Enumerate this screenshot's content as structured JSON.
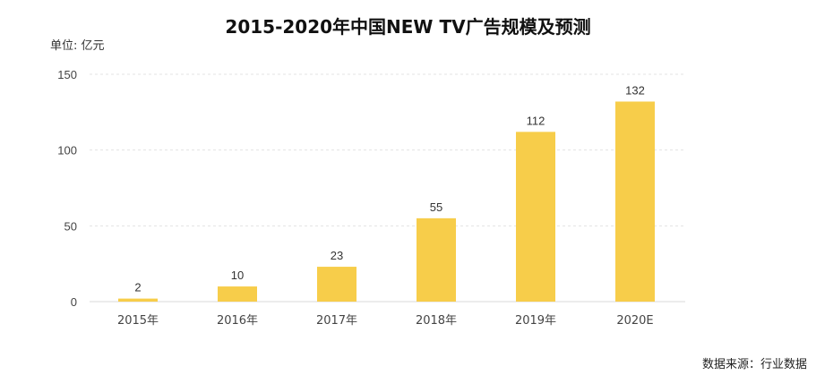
{
  "chart_data": {
    "type": "bar",
    "title": "2015-2020年中国NEW TV广告规模及预测",
    "unit_label": "单位: 亿元",
    "categories": [
      "2015年",
      "2016年",
      "2017年",
      "2018年",
      "2019年",
      "2020E"
    ],
    "values": [
      2,
      10,
      23,
      55,
      112,
      132
    ],
    "data_labels": [
      "2",
      "10",
      "23",
      "55",
      "112",
      "132"
    ],
    "ylim": [
      0,
      150
    ],
    "yticks": [
      0,
      50,
      100,
      150
    ],
    "grid": true,
    "bar_color": "#f7cd4a",
    "source": "数据来源：行业数据"
  }
}
